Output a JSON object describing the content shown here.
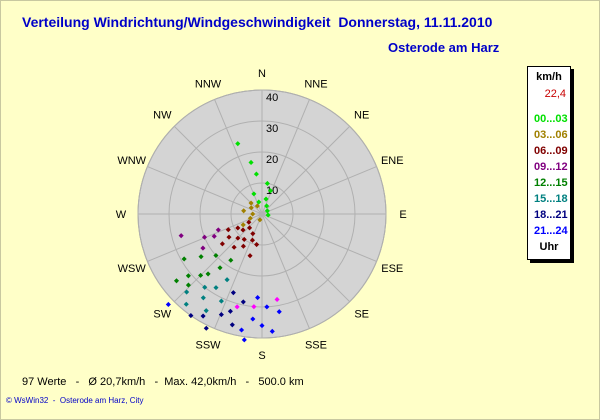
{
  "header": {
    "title": "Verteilung Windrichtung/Windgeschwindigkeit  Donnerstag, 11.11.2010",
    "location": "Osterode am Harz"
  },
  "legend": {
    "unit": "km/h",
    "peak": "22,4",
    "footer": "Uhr",
    "entries": [
      {
        "label": "00...03",
        "color": "#00e000"
      },
      {
        "label": "03...06",
        "color": "#a08000"
      },
      {
        "label": "06...09",
        "color": "#800000"
      },
      {
        "label": "09...12",
        "color": "#800080"
      },
      {
        "label": "12...15",
        "color": "#008000"
      },
      {
        "label": "15...18",
        "color": "#008080"
      },
      {
        "label": "18...21",
        "color": "#000080"
      },
      {
        "label": "21...24",
        "color": "#0000ff"
      }
    ]
  },
  "stats": "97 Werte   -   Ø 20,7km/h   -  Max. 42,0km/h   -   500.0 km",
  "credit": "© WsWin32  -  Osterode am Harz, City",
  "colors": {
    "background": "#ffffc8",
    "plot_fill": "#d4d4d4",
    "title": "#0000c8",
    "extra_magenta": "#ff00ff"
  },
  "chart_data": {
    "type": "scatter",
    "subtype": "polar wind rose",
    "r_range": [
      0,
      40
    ],
    "r_ticks": [
      "10",
      "20",
      "30",
      "40"
    ],
    "r_unit": "km/h",
    "directions": [
      "N",
      "NNE",
      "NE",
      "ENE",
      "E",
      "ESE",
      "SE",
      "SSE",
      "S",
      "SSW",
      "SW",
      "WSW",
      "W",
      "WNW",
      "NW",
      "NNW"
    ],
    "grid": true,
    "legend_position": "right",
    "series": [
      {
        "name": "00...03",
        "color": "#00e000",
        "points": [
          {
            "bearing": 341,
            "speed": 24
          },
          {
            "bearing": 348,
            "speed": 17
          },
          {
            "bearing": 352,
            "speed": 13
          },
          {
            "bearing": 10,
            "speed": 10
          },
          {
            "bearing": 20,
            "speed": 8
          },
          {
            "bearing": 338,
            "speed": 7
          },
          {
            "bearing": 15,
            "speed": 5
          },
          {
            "bearing": 345,
            "speed": 4
          },
          {
            "bearing": 30,
            "speed": 3
          },
          {
            "bearing": 60,
            "speed": 2
          },
          {
            "bearing": 100,
            "speed": 2
          }
        ]
      },
      {
        "name": "03...06",
        "color": "#a08000",
        "points": [
          {
            "bearing": 300,
            "speed": 4
          },
          {
            "bearing": 315,
            "speed": 5
          },
          {
            "bearing": 270,
            "speed": 3
          },
          {
            "bearing": 250,
            "speed": 4
          },
          {
            "bearing": 200,
            "speed": 2
          },
          {
            "bearing": 330,
            "speed": 3
          },
          {
            "bearing": 280,
            "speed": 6
          },
          {
            "bearing": 240,
            "speed": 7
          }
        ]
      },
      {
        "name": "06...09",
        "color": "#800000",
        "points": [
          {
            "bearing": 215,
            "speed": 10
          },
          {
            "bearing": 225,
            "speed": 11
          },
          {
            "bearing": 230,
            "speed": 8
          },
          {
            "bearing": 240,
            "speed": 9
          },
          {
            "bearing": 235,
            "speed": 13
          },
          {
            "bearing": 220,
            "speed": 14
          },
          {
            "bearing": 210,
            "speed": 12
          },
          {
            "bearing": 200,
            "speed": 9
          },
          {
            "bearing": 205,
            "speed": 7
          },
          {
            "bearing": 190,
            "speed": 10
          },
          {
            "bearing": 245,
            "speed": 12
          },
          {
            "bearing": 222,
            "speed": 6
          },
          {
            "bearing": 233,
            "speed": 16
          },
          {
            "bearing": 238,
            "speed": 5
          },
          {
            "bearing": 196,
            "speed": 14
          }
        ]
      },
      {
        "name": "09...12",
        "color": "#800080",
        "points": [
          {
            "bearing": 248,
            "speed": 20
          },
          {
            "bearing": 255,
            "speed": 27
          },
          {
            "bearing": 245,
            "speed": 17
          },
          {
            "bearing": 250,
            "speed": 15
          },
          {
            "bearing": 240,
            "speed": 22
          }
        ]
      },
      {
        "name": "12...15",
        "color": "#008000",
        "points": [
          {
            "bearing": 230,
            "speed": 31
          },
          {
            "bearing": 225,
            "speed": 28
          },
          {
            "bearing": 235,
            "speed": 24
          },
          {
            "bearing": 222,
            "speed": 26
          },
          {
            "bearing": 218,
            "speed": 22
          },
          {
            "bearing": 228,
            "speed": 20
          },
          {
            "bearing": 240,
            "speed": 29
          },
          {
            "bearing": 214,
            "speed": 18
          },
          {
            "bearing": 232,
            "speed": 35
          },
          {
            "bearing": 226,
            "speed": 33
          }
        ]
      },
      {
        "name": "15...18",
        "color": "#008080",
        "points": [
          {
            "bearing": 218,
            "speed": 30
          },
          {
            "bearing": 212,
            "speed": 28
          },
          {
            "bearing": 224,
            "speed": 35
          },
          {
            "bearing": 208,
            "speed": 24
          },
          {
            "bearing": 215,
            "speed": 33
          },
          {
            "bearing": 205,
            "speed": 31
          },
          {
            "bearing": 220,
            "speed": 38
          },
          {
            "bearing": 210,
            "speed": 36
          }
        ]
      },
      {
        "name": "18...21",
        "color": "#000080",
        "points": [
          {
            "bearing": 202,
            "speed": 35
          },
          {
            "bearing": 210,
            "speed": 38
          },
          {
            "bearing": 198,
            "speed": 33
          },
          {
            "bearing": 195,
            "speed": 37
          },
          {
            "bearing": 206,
            "speed": 41
          },
          {
            "bearing": 215,
            "speed": 40
          },
          {
            "bearing": 192,
            "speed": 29
          },
          {
            "bearing": 200,
            "speed": 27
          }
        ]
      },
      {
        "name": "21...24",
        "color": "#0000ff",
        "points": [
          {
            "bearing": 226,
            "speed": 42
          },
          {
            "bearing": 190,
            "speed": 38
          },
          {
            "bearing": 185,
            "speed": 34
          },
          {
            "bearing": 180,
            "speed": 36
          },
          {
            "bearing": 175,
            "speed": 38
          },
          {
            "bearing": 170,
            "speed": 32
          },
          {
            "bearing": 183,
            "speed": 27
          },
          {
            "bearing": 188,
            "speed": 41
          },
          {
            "bearing": 177,
            "speed": 30
          }
        ]
      },
      {
        "name": "",
        "color": "#ff00ff",
        "points": [
          {
            "bearing": 170,
            "speed": 28
          },
          {
            "bearing": 185,
            "speed": 30
          },
          {
            "bearing": 195,
            "speed": 31
          }
        ]
      }
    ]
  }
}
